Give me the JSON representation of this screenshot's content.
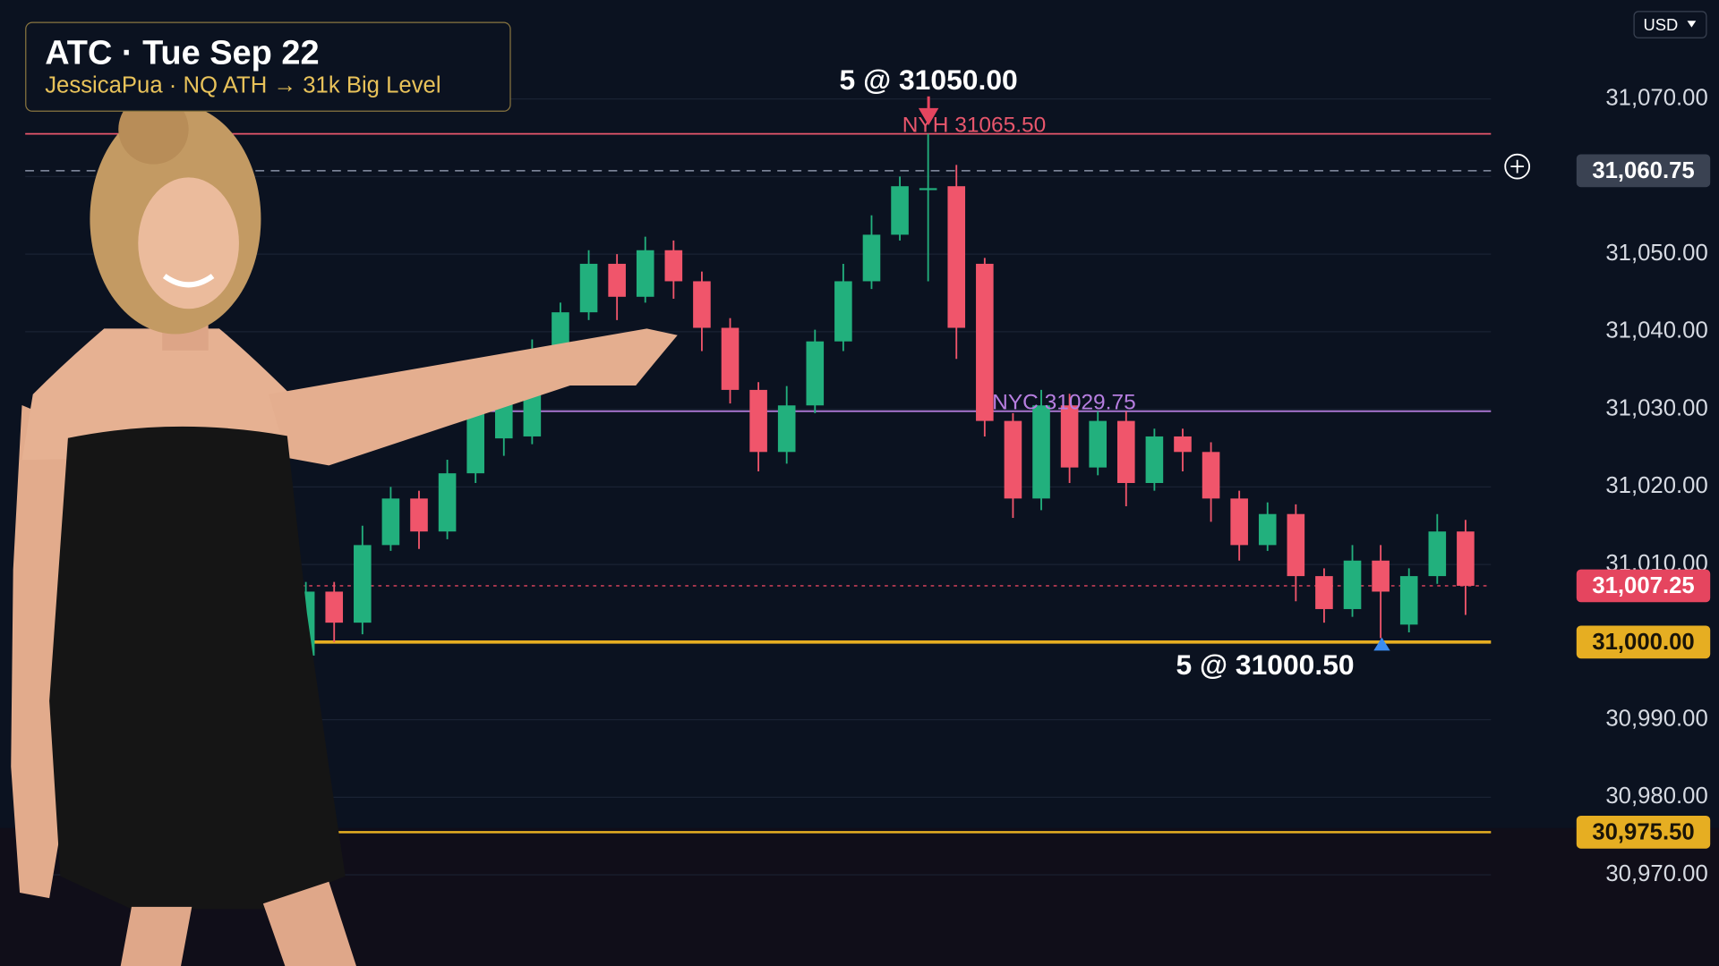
{
  "chart_data": {
    "type": "candlestick",
    "title": "ATC · Tue Sep 22",
    "subtitle": "JessicaPua · NQ ATH → 31k Big Level",
    "currency": "USD",
    "up_color": "#22b07d",
    "down_color": "#f0556b",
    "grid": true,
    "ylim": [
      30958.25,
      31082.75
    ],
    "yticks": [
      {
        "value": 31070,
        "label": "31,070.00"
      },
      {
        "value": 31060,
        "label": "31,060.00"
      },
      {
        "value": 31050,
        "label": "31,050.00"
      },
      {
        "value": 31040,
        "label": "31,040.00"
      },
      {
        "value": 31030,
        "label": "31,030.00"
      },
      {
        "value": 31020,
        "label": "31,020.00"
      },
      {
        "value": 31010,
        "label": "31,010.00"
      },
      {
        "value": 31000,
        "label": "31,000.00"
      },
      {
        "value": 30990,
        "label": "30,990.00"
      },
      {
        "value": 30980,
        "label": "30,980.00"
      },
      {
        "value": 30970,
        "label": "30,970.00"
      }
    ],
    "open": [
      30998.25,
      31006.5,
      31002.5,
      31012.5,
      31018.5,
      31014.25,
      31021.75,
      31026.25,
      31026.5,
      31036.75,
      31042.5,
      31048.75,
      31044.5,
      31050.5,
      31046.5,
      31040.5,
      31032.5,
      31024.5,
      31030.5,
      31038.75,
      31046.5,
      31052.5,
      31058.25,
      31058.75,
      31048.75,
      31028.5,
      31018.5,
      31030.5,
      31022.5,
      31028.5,
      31020.5,
      31026.5,
      31024.5,
      31018.5,
      31012.5,
      31016.5,
      31008.5,
      31004.25,
      31010.5,
      31002.25,
      31008.5,
      31014.25
    ],
    "high": [
      31007.75,
      31007.75,
      31015,
      31020,
      31019.5,
      31023.5,
      31032.25,
      31034,
      31039,
      31043.75,
      31050.5,
      31050,
      31052.25,
      31051.75,
      31047.75,
      31041.75,
      31033.5,
      31033,
      31040.25,
      31048.75,
      31055,
      31060,
      31065.5,
      31061.5,
      31049.5,
      31029.5,
      31032.5,
      31032,
      31029.75,
      31029.75,
      31027.5,
      31027.5,
      31025.75,
      31019.5,
      31018,
      31017.75,
      31009.5,
      31012.5,
      31012.5,
      31009.5,
      31016.5,
      31015.75
    ],
    "low": [
      30997.5,
      31000,
      31001,
      31011.75,
      31012,
      31013.25,
      31020.5,
      31024,
      31025.5,
      31035.5,
      31041.5,
      31041.5,
      31043.75,
      31044.25,
      31037.5,
      31030.75,
      31022,
      31023,
      31029.5,
      31037.5,
      31045.5,
      31051.75,
      31046.5,
      31036.5,
      31026.5,
      31016,
      31017,
      31020.5,
      31021.5,
      31017.5,
      31019.5,
      31022,
      31015.5,
      31010.5,
      31011.75,
      31005.25,
      31002.5,
      31003.25,
      31000.5,
      31001.25,
      31007.5,
      31003.5
    ],
    "close": [
      31006.5,
      31002.5,
      31012.5,
      31018.5,
      31014.25,
      31021.75,
      31030.25,
      31032.5,
      31036.75,
      31042.5,
      31048.75,
      31044.5,
      31050.5,
      31046.5,
      31040.5,
      31032.5,
      31024.5,
      31030.5,
      31038.75,
      31046.5,
      31052.5,
      31058.75,
      31058.5,
      31040.5,
      31028.5,
      31018.5,
      31030.5,
      31022.5,
      31028.5,
      31020.5,
      31026.5,
      31024.5,
      31018.5,
      31012.5,
      31016.5,
      31008.5,
      31004.25,
      31010.5,
      31006.5,
      31008.5,
      31014.25,
      31007.25
    ],
    "levels": [
      {
        "label": "NYH 31065.50",
        "value": 31065.5,
        "color": "#e8566c"
      },
      {
        "label": "NYC 31029.75",
        "value": 31029.75,
        "color": "#b77ee0"
      }
    ],
    "price_tags": [
      {
        "value": 31060.75,
        "label": "31,060.75",
        "color": "#3a4252",
        "text_color": "#ffffff",
        "line": "dashed"
      },
      {
        "value": 31007.25,
        "label": "31,007.25",
        "color": "#e5455f",
        "text_color": "#ffffff",
        "line": "dotted"
      },
      {
        "value": 31000,
        "label": "31,000.00",
        "color": "#e6ae22",
        "text_color": "#1a1408",
        "line": "solid"
      },
      {
        "value": 30975.5,
        "label": "30,975.50",
        "color": "#e6ae22",
        "text_color": "#1a1408",
        "line": "solid"
      }
    ],
    "fills": [
      {
        "label": "5 @ 31050.00"
      },
      {
        "label": "5 @ 31000.50"
      }
    ]
  }
}
